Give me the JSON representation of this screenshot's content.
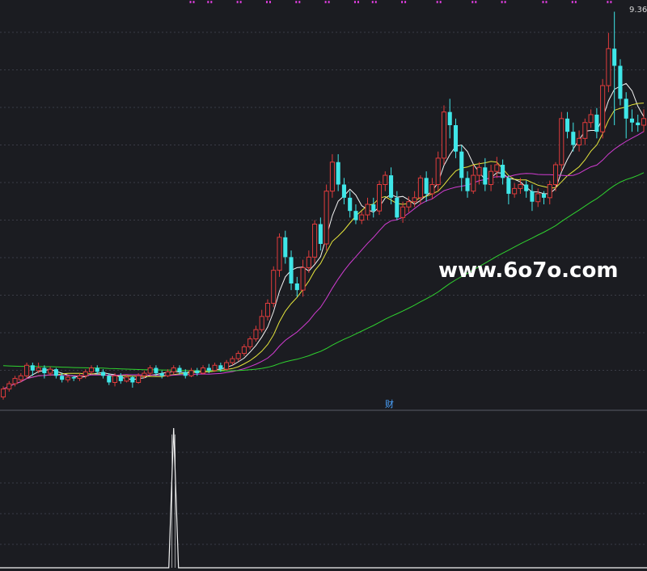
{
  "colors": {
    "background": "#1b1c21",
    "grid": "#3a3c46",
    "divider": "#5a5c66",
    "up": "#e03c3c",
    "down": "#3fe6e8",
    "ma5": "#f2f2f2",
    "ma10": "#e6e63c",
    "ma20": "#d23cd2",
    "ma60": "#2fd22f",
    "marker": "#d23cd2",
    "indicator": "#f2f2f2",
    "fin_label": "#4aa3ff",
    "watermark": "#ffffff",
    "price_label": "#d8d8d8"
  },
  "watermark": "www.6o7o.com",
  "fin_marker": "财",
  "high_label": "9.36",
  "chart_data": {
    "type": "candlestick",
    "ylim": [
      6.4,
      9.4
    ],
    "candles": [
      [
        6.44,
        6.5,
        6.42,
        6.52
      ],
      [
        6.5,
        6.54,
        6.48,
        6.56
      ],
      [
        6.54,
        6.58,
        6.52,
        6.6
      ],
      [
        6.57,
        6.6,
        6.55,
        6.62
      ],
      [
        6.6,
        6.68,
        6.58,
        6.7
      ],
      [
        6.68,
        6.64,
        6.6,
        6.7
      ],
      [
        6.64,
        6.66,
        6.62,
        6.7
      ],
      [
        6.66,
        6.62,
        6.58,
        6.68
      ],
      [
        6.62,
        6.65,
        6.6,
        6.67
      ],
      [
        6.65,
        6.6,
        6.58,
        6.66
      ],
      [
        6.6,
        6.57,
        6.55,
        6.62
      ],
      [
        6.57,
        6.59,
        6.55,
        6.61
      ],
      [
        6.59,
        6.58,
        6.56,
        6.6
      ],
      [
        6.58,
        6.6,
        6.56,
        6.62
      ],
      [
        6.6,
        6.63,
        6.58,
        6.65
      ],
      [
        6.63,
        6.66,
        6.61,
        6.68
      ],
      [
        6.66,
        6.63,
        6.61,
        6.68
      ],
      [
        6.63,
        6.6,
        6.58,
        6.65
      ],
      [
        6.6,
        6.55,
        6.53,
        6.62
      ],
      [
        6.55,
        6.6,
        6.52,
        6.62
      ],
      [
        6.6,
        6.56,
        6.54,
        6.62
      ],
      [
        6.56,
        6.59,
        6.55,
        6.61
      ],
      [
        6.59,
        6.55,
        6.51,
        6.6
      ],
      [
        6.55,
        6.6,
        6.54,
        6.62
      ],
      [
        6.6,
        6.62,
        6.58,
        6.64
      ],
      [
        6.62,
        6.66,
        6.6,
        6.68
      ],
      [
        6.66,
        6.62,
        6.6,
        6.68
      ],
      [
        6.62,
        6.6,
        6.58,
        6.64
      ],
      [
        6.6,
        6.63,
        6.59,
        6.65
      ],
      [
        6.63,
        6.66,
        6.61,
        6.68
      ],
      [
        6.66,
        6.63,
        6.61,
        6.68
      ],
      [
        6.63,
        6.6,
        6.58,
        6.65
      ],
      [
        6.6,
        6.64,
        6.59,
        6.66
      ],
      [
        6.64,
        6.62,
        6.6,
        6.66
      ],
      [
        6.62,
        6.66,
        6.61,
        6.68
      ],
      [
        6.66,
        6.64,
        6.62,
        6.69
      ],
      [
        6.64,
        6.68,
        6.63,
        6.7
      ],
      [
        6.68,
        6.65,
        6.63,
        6.7
      ],
      [
        6.65,
        6.7,
        6.64,
        6.72
      ],
      [
        6.7,
        6.73,
        6.68,
        6.75
      ],
      [
        6.73,
        6.77,
        6.71,
        6.79
      ],
      [
        6.77,
        6.82,
        6.75,
        6.84
      ],
      [
        6.82,
        6.88,
        6.8,
        6.9
      ],
      [
        6.88,
        6.95,
        6.86,
        6.98
      ],
      [
        6.95,
        7.05,
        6.93,
        7.1
      ],
      [
        7.05,
        7.15,
        7.02,
        7.18
      ],
      [
        7.15,
        7.4,
        7.12,
        7.43
      ],
      [
        7.4,
        7.65,
        7.35,
        7.68
      ],
      [
        7.65,
        7.5,
        7.45,
        7.7
      ],
      [
        7.5,
        7.3,
        7.25,
        7.55
      ],
      [
        7.3,
        7.25,
        7.2,
        7.35
      ],
      [
        7.25,
        7.42,
        7.2,
        7.48
      ],
      [
        7.42,
        7.5,
        7.38,
        7.55
      ],
      [
        7.5,
        7.75,
        7.45,
        7.78
      ],
      [
        7.75,
        7.6,
        7.55,
        7.8
      ],
      [
        7.6,
        8.0,
        7.55,
        8.05
      ],
      [
        8.0,
        8.22,
        7.95,
        8.28
      ],
      [
        8.22,
        8.05,
        8.0,
        8.28
      ],
      [
        8.05,
        7.95,
        7.9,
        8.1
      ],
      [
        7.95,
        7.85,
        7.8,
        8.0
      ],
      [
        7.85,
        7.78,
        7.75,
        7.9
      ],
      [
        7.78,
        7.82,
        7.75,
        7.85
      ],
      [
        7.82,
        7.9,
        7.78,
        7.95
      ],
      [
        7.9,
        7.85,
        7.8,
        7.95
      ],
      [
        7.85,
        8.05,
        7.82,
        8.08
      ],
      [
        8.05,
        8.12,
        8.0,
        8.15
      ],
      [
        8.12,
        7.95,
        7.9,
        8.18
      ],
      [
        7.95,
        7.8,
        7.78,
        8.0
      ],
      [
        7.8,
        7.88,
        7.76,
        7.92
      ],
      [
        7.88,
        7.92,
        7.84,
        7.96
      ],
      [
        7.92,
        7.95,
        7.88,
        8.0
      ],
      [
        7.95,
        8.1,
        7.9,
        8.12
      ],
      [
        8.1,
        7.98,
        7.92,
        8.15
      ],
      [
        7.98,
        8.05,
        7.94,
        8.1
      ],
      [
        8.05,
        8.25,
        8.0,
        8.3
      ],
      [
        8.25,
        8.6,
        8.2,
        8.65
      ],
      [
        8.6,
        8.5,
        8.4,
        8.7
      ],
      [
        8.5,
        8.3,
        8.25,
        8.55
      ],
      [
        8.3,
        8.1,
        8.0,
        8.35
      ],
      [
        8.1,
        8.0,
        7.95,
        8.15
      ],
      [
        8.0,
        8.12,
        7.98,
        8.2
      ],
      [
        8.12,
        8.18,
        8.05,
        8.22
      ],
      [
        8.18,
        8.05,
        8.0,
        8.25
      ],
      [
        8.05,
        8.15,
        8.0,
        8.2
      ],
      [
        8.15,
        8.2,
        8.1,
        8.26
      ],
      [
        8.2,
        8.1,
        8.05,
        8.24
      ],
      [
        8.1,
        7.98,
        7.9,
        8.12
      ],
      [
        7.98,
        8.02,
        7.95,
        8.06
      ],
      [
        8.02,
        8.05,
        7.98,
        8.1
      ],
      [
        8.05,
        8.0,
        7.95,
        8.08
      ],
      [
        8.0,
        7.92,
        7.85,
        8.05
      ],
      [
        7.92,
        7.98,
        7.88,
        8.02
      ],
      [
        7.98,
        7.95,
        7.9,
        8.0
      ],
      [
        7.95,
        8.05,
        7.9,
        8.08
      ],
      [
        8.05,
        8.2,
        8.0,
        8.22
      ],
      [
        8.2,
        8.55,
        8.15,
        8.6
      ],
      [
        8.55,
        8.45,
        8.4,
        8.6
      ],
      [
        8.45,
        8.35,
        8.3,
        8.52
      ],
      [
        8.35,
        8.4,
        8.3,
        8.46
      ],
      [
        8.4,
        8.52,
        8.35,
        8.55
      ],
      [
        8.52,
        8.58,
        8.48,
        8.62
      ],
      [
        8.58,
        8.45,
        8.4,
        8.63
      ],
      [
        8.45,
        8.8,
        8.4,
        8.85
      ],
      [
        8.8,
        9.08,
        8.75,
        9.2
      ],
      [
        9.08,
        8.95,
        8.5,
        9.36
      ],
      [
        8.95,
        8.7,
        8.65,
        9.0
      ],
      [
        8.7,
        8.55,
        8.4,
        8.75
      ],
      [
        8.55,
        8.52,
        8.45,
        8.62
      ],
      [
        8.52,
        8.5,
        8.45,
        8.58
      ],
      [
        8.5,
        8.55,
        8.45,
        8.62
      ]
    ],
    "ma_periods": [
      5,
      10,
      20,
      60
    ],
    "ma60_start": 6.68,
    "top_marker_candles": [
      32,
      35,
      40,
      45,
      50,
      55,
      60,
      63,
      68,
      74,
      80,
      85,
      92,
      97,
      103
    ],
    "indicator": {
      "ylim": [
        0,
        1
      ],
      "spike_at": 29,
      "spike_value": 1
    }
  }
}
